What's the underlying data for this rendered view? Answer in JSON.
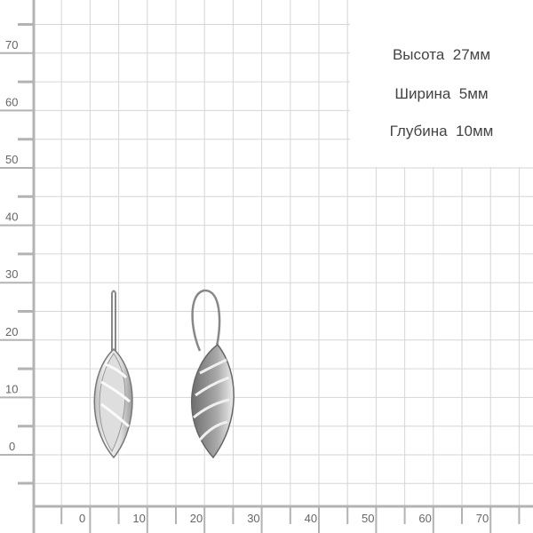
{
  "ruler": {
    "y_labels": [
      "70",
      "60",
      "50",
      "40",
      "30",
      "20",
      "10",
      "0"
    ],
    "x_labels": [
      "0",
      "10",
      "20",
      "30",
      "40",
      "50",
      "60",
      "70"
    ]
  },
  "dimensions": {
    "height": "Высота  27мм",
    "width": "Ширина  5мм",
    "depth": "Глубина  10мм"
  },
  "colors": {
    "grid": "#d6d6d6",
    "axis": "#b3b3b3",
    "metal": "#e9e9e9",
    "outline": "#8a8a8a"
  }
}
